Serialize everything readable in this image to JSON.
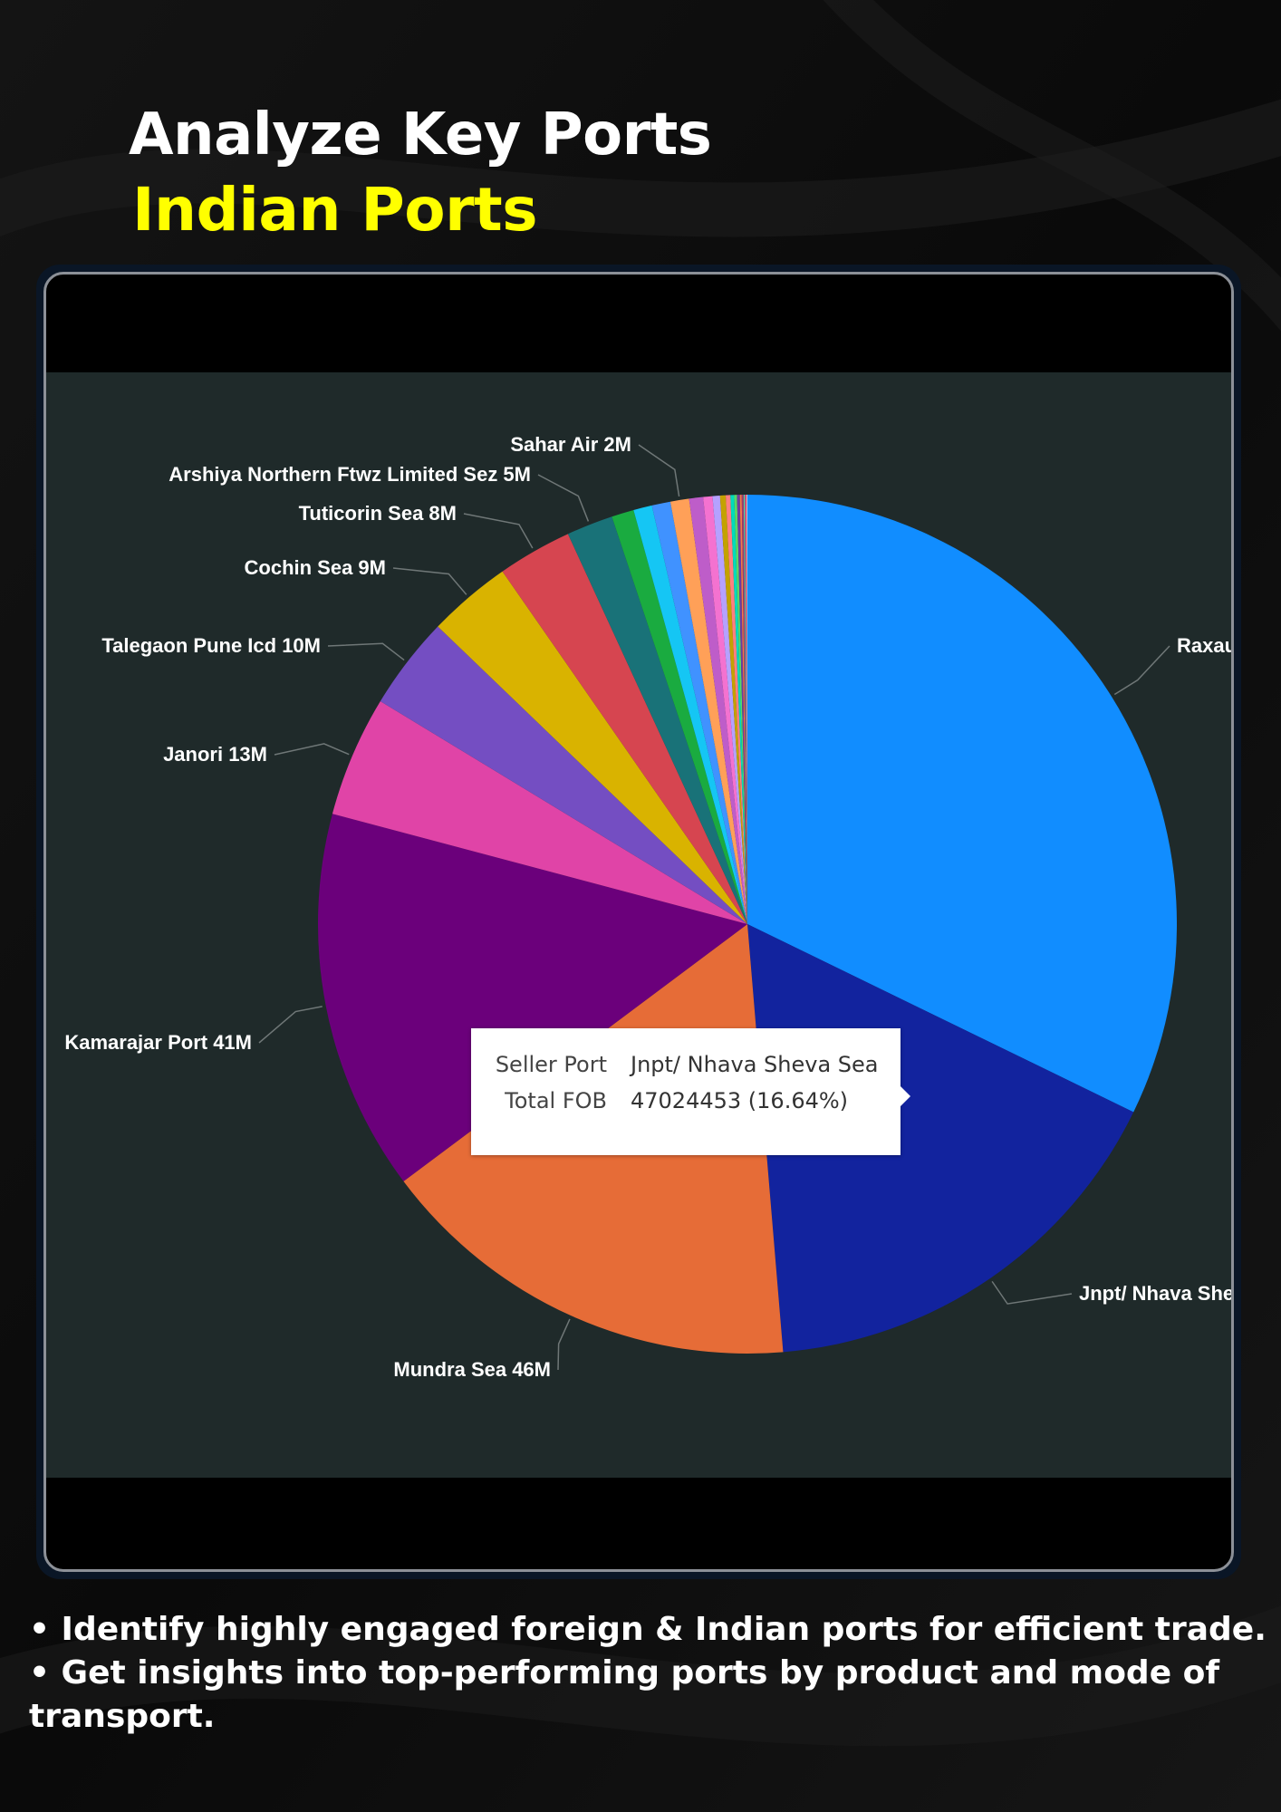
{
  "header": {
    "title": "Analyze Key Ports",
    "subtitle": "Indian Ports"
  },
  "colors": {
    "title": "#ffffff",
    "subtitle": "#ffff00",
    "chart_background": "#1f2a2a",
    "label_text": "#ffffff"
  },
  "tooltip": {
    "rows": [
      {
        "key": "Seller Port",
        "value": "Jnpt/ Nhava Sheva Sea"
      },
      {
        "key": "Total FOB",
        "value": "47024453 (16.64%)"
      }
    ]
  },
  "bullets": [
    "• Identify highly engaged foreign & Indian ports for efficient trade.",
    "• Get insights into top-performing ports by product and mode of transport."
  ],
  "chart_data": {
    "type": "pie",
    "title": "",
    "value_unit": "Total FOB",
    "total": 282600000,
    "slices": [
      {
        "label": "Raxaul",
        "display": "Raxaul",
        "value": 92000000,
        "color": "#118dff"
      },
      {
        "label": "Jnpt/ Nhava Sheva Sea",
        "display": "Jnpt/ Nhava She",
        "value": 47024453,
        "color": "#12239e"
      },
      {
        "label": "Mundra Sea",
        "display": "Mundra Sea 46M",
        "value": 46000000,
        "color": "#e66c37"
      },
      {
        "label": "Kamarajar Port",
        "display": "Kamarajar Port 41M",
        "value": 41000000,
        "color": "#6b007b"
      },
      {
        "label": "Janori",
        "display": "Janori 13M",
        "value": 13000000,
        "color": "#e044a7"
      },
      {
        "label": "Talegaon Pune Icd",
        "display": "Talegaon Pune Icd 10M",
        "value": 10000000,
        "color": "#744ec2"
      },
      {
        "label": "Cochin Sea",
        "display": "Cochin Sea 9M",
        "value": 9000000,
        "color": "#d9b300"
      },
      {
        "label": "Tuticorin Sea",
        "display": "Tuticorin Sea 8M",
        "value": 8000000,
        "color": "#d64550"
      },
      {
        "label": "Arshiya Northern Ftwz Limited Sez",
        "display": "Arshiya Northern Ftwz Limited Sez 5M",
        "value": 5000000,
        "color": "#197278"
      },
      {
        "label": "",
        "display": "",
        "value": 2400000,
        "color": "#1aab40"
      },
      {
        "label": "",
        "display": "",
        "value": 2000000,
        "color": "#15c6f4"
      },
      {
        "label": "",
        "display": "",
        "value": 2000000,
        "color": "#4092ff"
      },
      {
        "label": "Sahar Air",
        "display": "Sahar Air 2M",
        "value": 2000000,
        "color": "#ffa058"
      },
      {
        "label": "",
        "display": "",
        "value": 1500000,
        "color": "#be5dc9"
      },
      {
        "label": "",
        "display": "",
        "value": 1000000,
        "color": "#f472d0"
      },
      {
        "label": "",
        "display": "",
        "value": 800000,
        "color": "#b5a1ff"
      },
      {
        "label": "",
        "display": "",
        "value": 600000,
        "color": "#c4a200"
      },
      {
        "label": "",
        "display": "",
        "value": 500000,
        "color": "#ff8080"
      },
      {
        "label": "",
        "display": "",
        "value": 400000,
        "color": "#00dbbc"
      },
      {
        "label": "",
        "display": "",
        "value": 300000,
        "color": "#5bd667"
      },
      {
        "label": "",
        "display": "",
        "value": 300000,
        "color": "#6e3aa0"
      },
      {
        "label": "",
        "display": "",
        "value": 200000,
        "color": "#f27a4a"
      },
      {
        "label": "",
        "display": "",
        "value": 200000,
        "color": "#9e3a6e"
      },
      {
        "label": "",
        "display": "",
        "value": 150000,
        "color": "#4cc9a6"
      },
      {
        "label": "",
        "display": "",
        "value": 150000,
        "color": "#e8336e"
      },
      {
        "label": "",
        "display": "",
        "value": 100000,
        "color": "#c9c9c9"
      }
    ],
    "legend": "none"
  }
}
